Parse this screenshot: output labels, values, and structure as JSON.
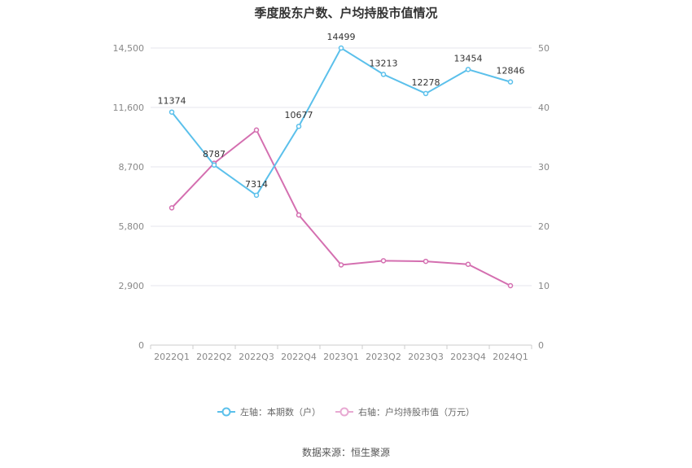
{
  "chart_data": {
    "type": "line",
    "title": "季度股东户数、户均持股市值情况",
    "categories": [
      "2022Q1",
      "2022Q2",
      "2022Q3",
      "2022Q4",
      "2023Q1",
      "2023Q2",
      "2023Q3",
      "2023Q4",
      "2024Q1"
    ],
    "series": [
      {
        "name": "左轴：本期数（户）",
        "axis": "left",
        "color": "#5bc0eb",
        "values": [
          11374,
          8787,
          7314,
          10677,
          14499,
          13213,
          12278,
          13454,
          12846
        ],
        "labels": [
          "11374",
          "8787",
          "7314",
          "10677",
          "14499",
          "13213",
          "12278",
          "13454",
          "12846"
        ]
      },
      {
        "name": "右轴：户均持股市值（万元）",
        "axis": "right",
        "color": "#d46fb0",
        "values": [
          23.1,
          30.6,
          36.2,
          21.9,
          13.5,
          14.2,
          14.1,
          13.6,
          10.0
        ]
      }
    ],
    "left_axis": {
      "ylim": [
        0,
        14500
      ],
      "ticks": [
        "0",
        "2,900",
        "5,800",
        "8,700",
        "11,600",
        "14,500"
      ]
    },
    "right_axis": {
      "ylim": [
        0,
        50
      ],
      "ticks": [
        "0",
        "10",
        "20",
        "30",
        "40",
        "50"
      ]
    },
    "grid": true,
    "legend_position": "bottom"
  },
  "source": "数据来源：恒生聚源"
}
